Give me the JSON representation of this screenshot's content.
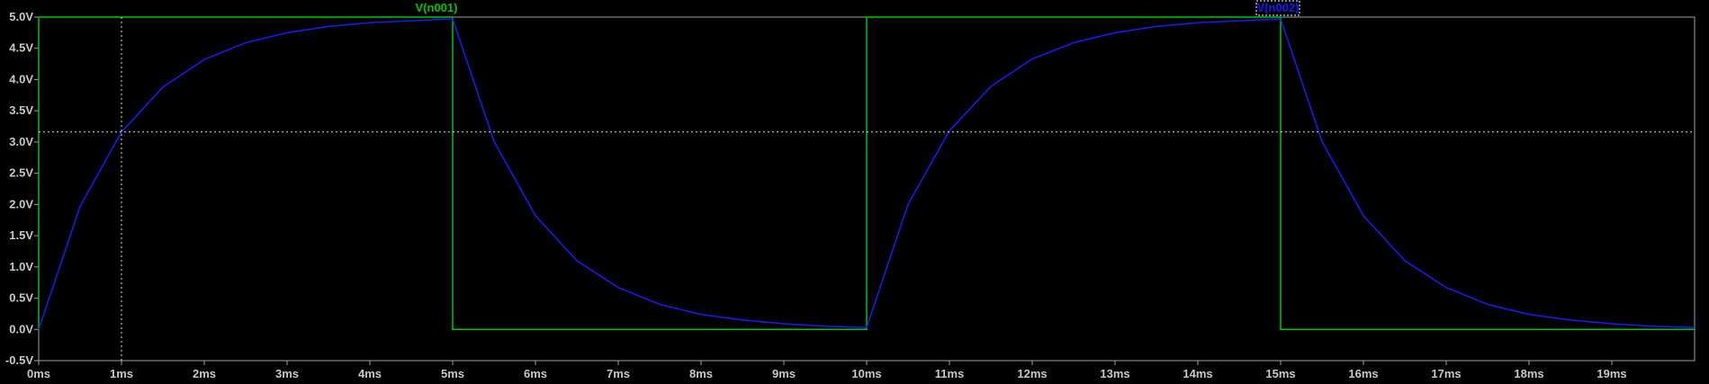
{
  "chart_data": {
    "type": "line",
    "xlim": [
      0,
      20
    ],
    "ylim": [
      -0.5,
      5.0
    ],
    "x_unit": "ms",
    "y_unit": "V",
    "xticks": [
      "0ms",
      "1ms",
      "2ms",
      "3ms",
      "4ms",
      "5ms",
      "6ms",
      "7ms",
      "8ms",
      "9ms",
      "10ms",
      "11ms",
      "12ms",
      "13ms",
      "14ms",
      "15ms",
      "16ms",
      "17ms",
      "18ms",
      "19ms"
    ],
    "yticks": [
      "5.0V",
      "4.5V",
      "4.0V",
      "3.5V",
      "3.0V",
      "2.5V",
      "2.0V",
      "1.5V",
      "1.0V",
      "0.5V",
      "0.0V",
      "-0.5V"
    ],
    "grid": false,
    "cursor": {
      "x": 1.0,
      "y": 3.16
    },
    "series": [
      {
        "name": "V(n001)",
        "color": "#00c800",
        "x": [
          0,
          0,
          5,
          5,
          10,
          10,
          15,
          15,
          20
        ],
        "y": [
          0,
          5,
          5,
          0,
          0,
          5,
          5,
          0,
          0
        ]
      },
      {
        "name": "V(n002)",
        "color": "#1a1aff",
        "x": [
          0,
          0.5,
          1.0,
          1.5,
          2.0,
          2.5,
          3.0,
          3.5,
          4.0,
          4.5,
          5.0,
          5.5,
          6.0,
          6.5,
          7.0,
          7.5,
          8.0,
          8.5,
          9.0,
          9.5,
          10.0,
          10.5,
          11.0,
          11.5,
          12.0,
          12.5,
          13.0,
          13.5,
          14.0,
          14.5,
          15.0,
          15.5,
          16.0,
          16.5,
          17.0,
          17.5,
          18.0,
          18.5,
          19.0,
          19.5,
          20.0
        ],
        "y": [
          0.0,
          1.97,
          3.16,
          3.88,
          4.32,
          4.59,
          4.75,
          4.85,
          4.91,
          4.94,
          4.97,
          3.01,
          1.82,
          1.1,
          0.67,
          0.4,
          0.24,
          0.15,
          0.09,
          0.05,
          0.03,
          2.0,
          3.18,
          3.89,
          4.33,
          4.59,
          4.75,
          4.85,
          4.91,
          4.94,
          4.97,
          3.01,
          1.82,
          1.1,
          0.67,
          0.4,
          0.24,
          0.15,
          0.09,
          0.05,
          0.03
        ]
      }
    ]
  }
}
